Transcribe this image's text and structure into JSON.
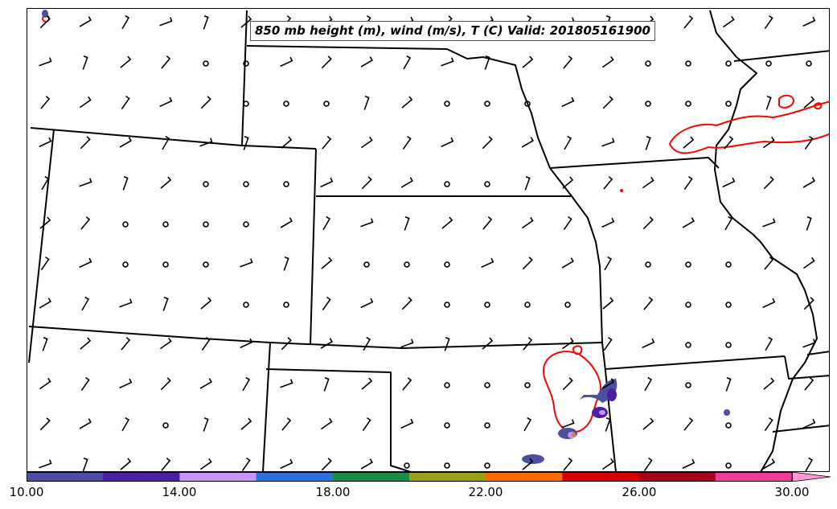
{
  "title": "850 mb height (m), wind (m/s), T (C) Valid: 201805161900",
  "colorbar": {
    "labels": [
      "10.00",
      "14.00",
      "18.00",
      "22.00",
      "26.00",
      "30.00"
    ],
    "colors": [
      "#4b4f9c",
      "#4b1ea8",
      "#c597f2",
      "#2f6fdc",
      "#1e8a48",
      "#9aa01a",
      "#ff6a00",
      "#d40000",
      "#a8001e",
      "#f03c96",
      "#ff9ad2"
    ]
  },
  "map": {
    "contour_color": "#ff0000",
    "boundary_color": "#000000",
    "region": "Central Great Plains (Colorado, Kansas, Nebraska, Missouri, Oklahoma)"
  }
}
